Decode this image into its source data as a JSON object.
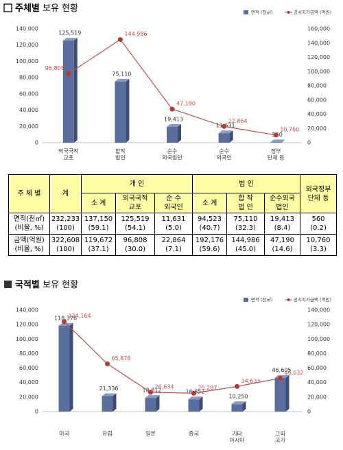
{
  "sections": [
    {
      "heading_bold": "주체별",
      "heading": "보유 현황"
    },
    {
      "heading_bold": "국적별",
      "heading": "보유 현황"
    }
  ],
  "chart_data": [
    {
      "type": "combo",
      "categories": [
        "외국국적\n교포",
        "합작\n법인",
        "순수\n외국법인",
        "순수\n외국인",
        "정부\n단체 등"
      ],
      "series": [
        {
          "name": "면적 (천㎡)",
          "type": "bar",
          "color": "#5a6e9e",
          "values": [
            125519,
            75110,
            19413,
            11631,
            560
          ],
          "value_labels": [
            "125,519",
            "75,110",
            "19,413",
            "11,631",
            "560"
          ]
        },
        {
          "name": "공시지가금액 (억원)",
          "type": "line",
          "axis": "y2",
          "color": "#c0504d",
          "values": [
            96808,
            144986,
            47190,
            22864,
            10760
          ],
          "value_labels": [
            "96,808",
            "144,986",
            "47,190",
            "22,864",
            "10,760"
          ]
        }
      ],
      "ylim": [
        0,
        140000
      ],
      "yticks": [
        0,
        {
          "value": 20000,
          "label": "20,000"
        },
        {
          "value": 40000,
          "label": "40,000"
        },
        {
          "value": 60000,
          "label": "60,000"
        },
        {
          "value": 80000,
          "label": "80,000"
        },
        {
          "value": 100000,
          "label": "100,000"
        },
        {
          "value": 120000,
          "label": "120,000"
        },
        {
          "value": 140000,
          "label": "140,000"
        }
      ],
      "y2lim": [
        0,
        160000
      ],
      "y2ticks": [
        0,
        {
          "value": 20000,
          "label": "20,000"
        },
        {
          "value": 40000,
          "label": "40,000"
        },
        {
          "value": 60000,
          "label": "60,000"
        },
        {
          "value": 80000,
          "label": "80,000"
        },
        {
          "value": 100000,
          "label": "100,000"
        },
        {
          "value": 120000,
          "label": "120,000"
        },
        {
          "value": 140000,
          "label": "140,000"
        },
        {
          "value": 160000,
          "label": "160,000"
        }
      ],
      "legend": "top-right"
    },
    {
      "type": "combo",
      "categories": [
        "미국",
        "유럽",
        "일본",
        "중국",
        "기타\n아시아",
        "그외\n국가"
      ],
      "series": [
        {
          "name": "면적 (천㎡)",
          "type": "bar",
          "color": "#5a6e9e",
          "values": [
            118378,
            21336,
            18812,
            16852,
            10250,
            46605
          ],
          "value_labels": [
            "118,378",
            "21,336",
            "18,812",
            "16,852",
            "10,250",
            "46,605"
          ]
        },
        {
          "name": "공시지가금액 (억원)",
          "type": "line",
          "axis": "y2",
          "color": "#c0504d",
          "values": [
            124164,
            65878,
            26634,
            25287,
            34633,
            46032
          ],
          "value_labels": [
            "124,164",
            "65,878",
            "26,634",
            "25,287",
            "34,633",
            "46,032"
          ]
        }
      ],
      "ylim": [
        0,
        140000
      ],
      "yticks": [
        0,
        {
          "value": 20000,
          "label": "20,000"
        },
        {
          "value": 40000,
          "label": "40,000"
        },
        {
          "value": 60000,
          "label": "60,000"
        },
        {
          "value": 80000,
          "label": "80,000"
        },
        {
          "value": 100000,
          "label": "100,000"
        },
        {
          "value": 120000,
          "label": "120,000"
        },
        {
          "value": 140000,
          "label": "140,000"
        }
      ],
      "y2lim": [
        0,
        140000
      ],
      "y2ticks": [
        0,
        {
          "value": 20000,
          "label": "20,000"
        },
        {
          "value": 40000,
          "label": "40,000"
        },
        {
          "value": 60000,
          "label": "60,000"
        },
        {
          "value": 80000,
          "label": "80,000"
        },
        {
          "value": 100000,
          "label": "100,000"
        },
        {
          "value": 120000,
          "label": "120,000"
        },
        {
          "value": 140000,
          "label": "140,000"
        }
      ],
      "legend": "top-right"
    }
  ],
  "table": {
    "header_top": [
      "주 체 별",
      "계",
      "개 인",
      "법 인",
      "외국정부\n단체 등"
    ],
    "header_sub": [
      "소 계",
      "외국국적\n교포",
      "순 수\n외국인",
      "소 계",
      "합 작\n법 인",
      "순수외국\n법인"
    ],
    "rows": [
      [
        "면적(천㎡)\n(비율, %)",
        "232,233\n(100)",
        "137,150\n(59.1)",
        "125,519\n(54.1)",
        "11,631\n(5.0)",
        "94,523\n(40.7)",
        "75,110\n(32.3)",
        "19,413\n(8.4)",
        "560\n(0.2)"
      ],
      [
        "금액(억원)\n(비율, %)",
        "322,608\n(100)",
        "119,672\n(37.1)",
        "96,808\n(30.0)",
        "22,864\n(7.1)",
        "192,176\n(59.6)",
        "144,986\n(45.0)",
        "47,190\n(14.6)",
        "10,760\n(3.3)"
      ]
    ]
  }
}
